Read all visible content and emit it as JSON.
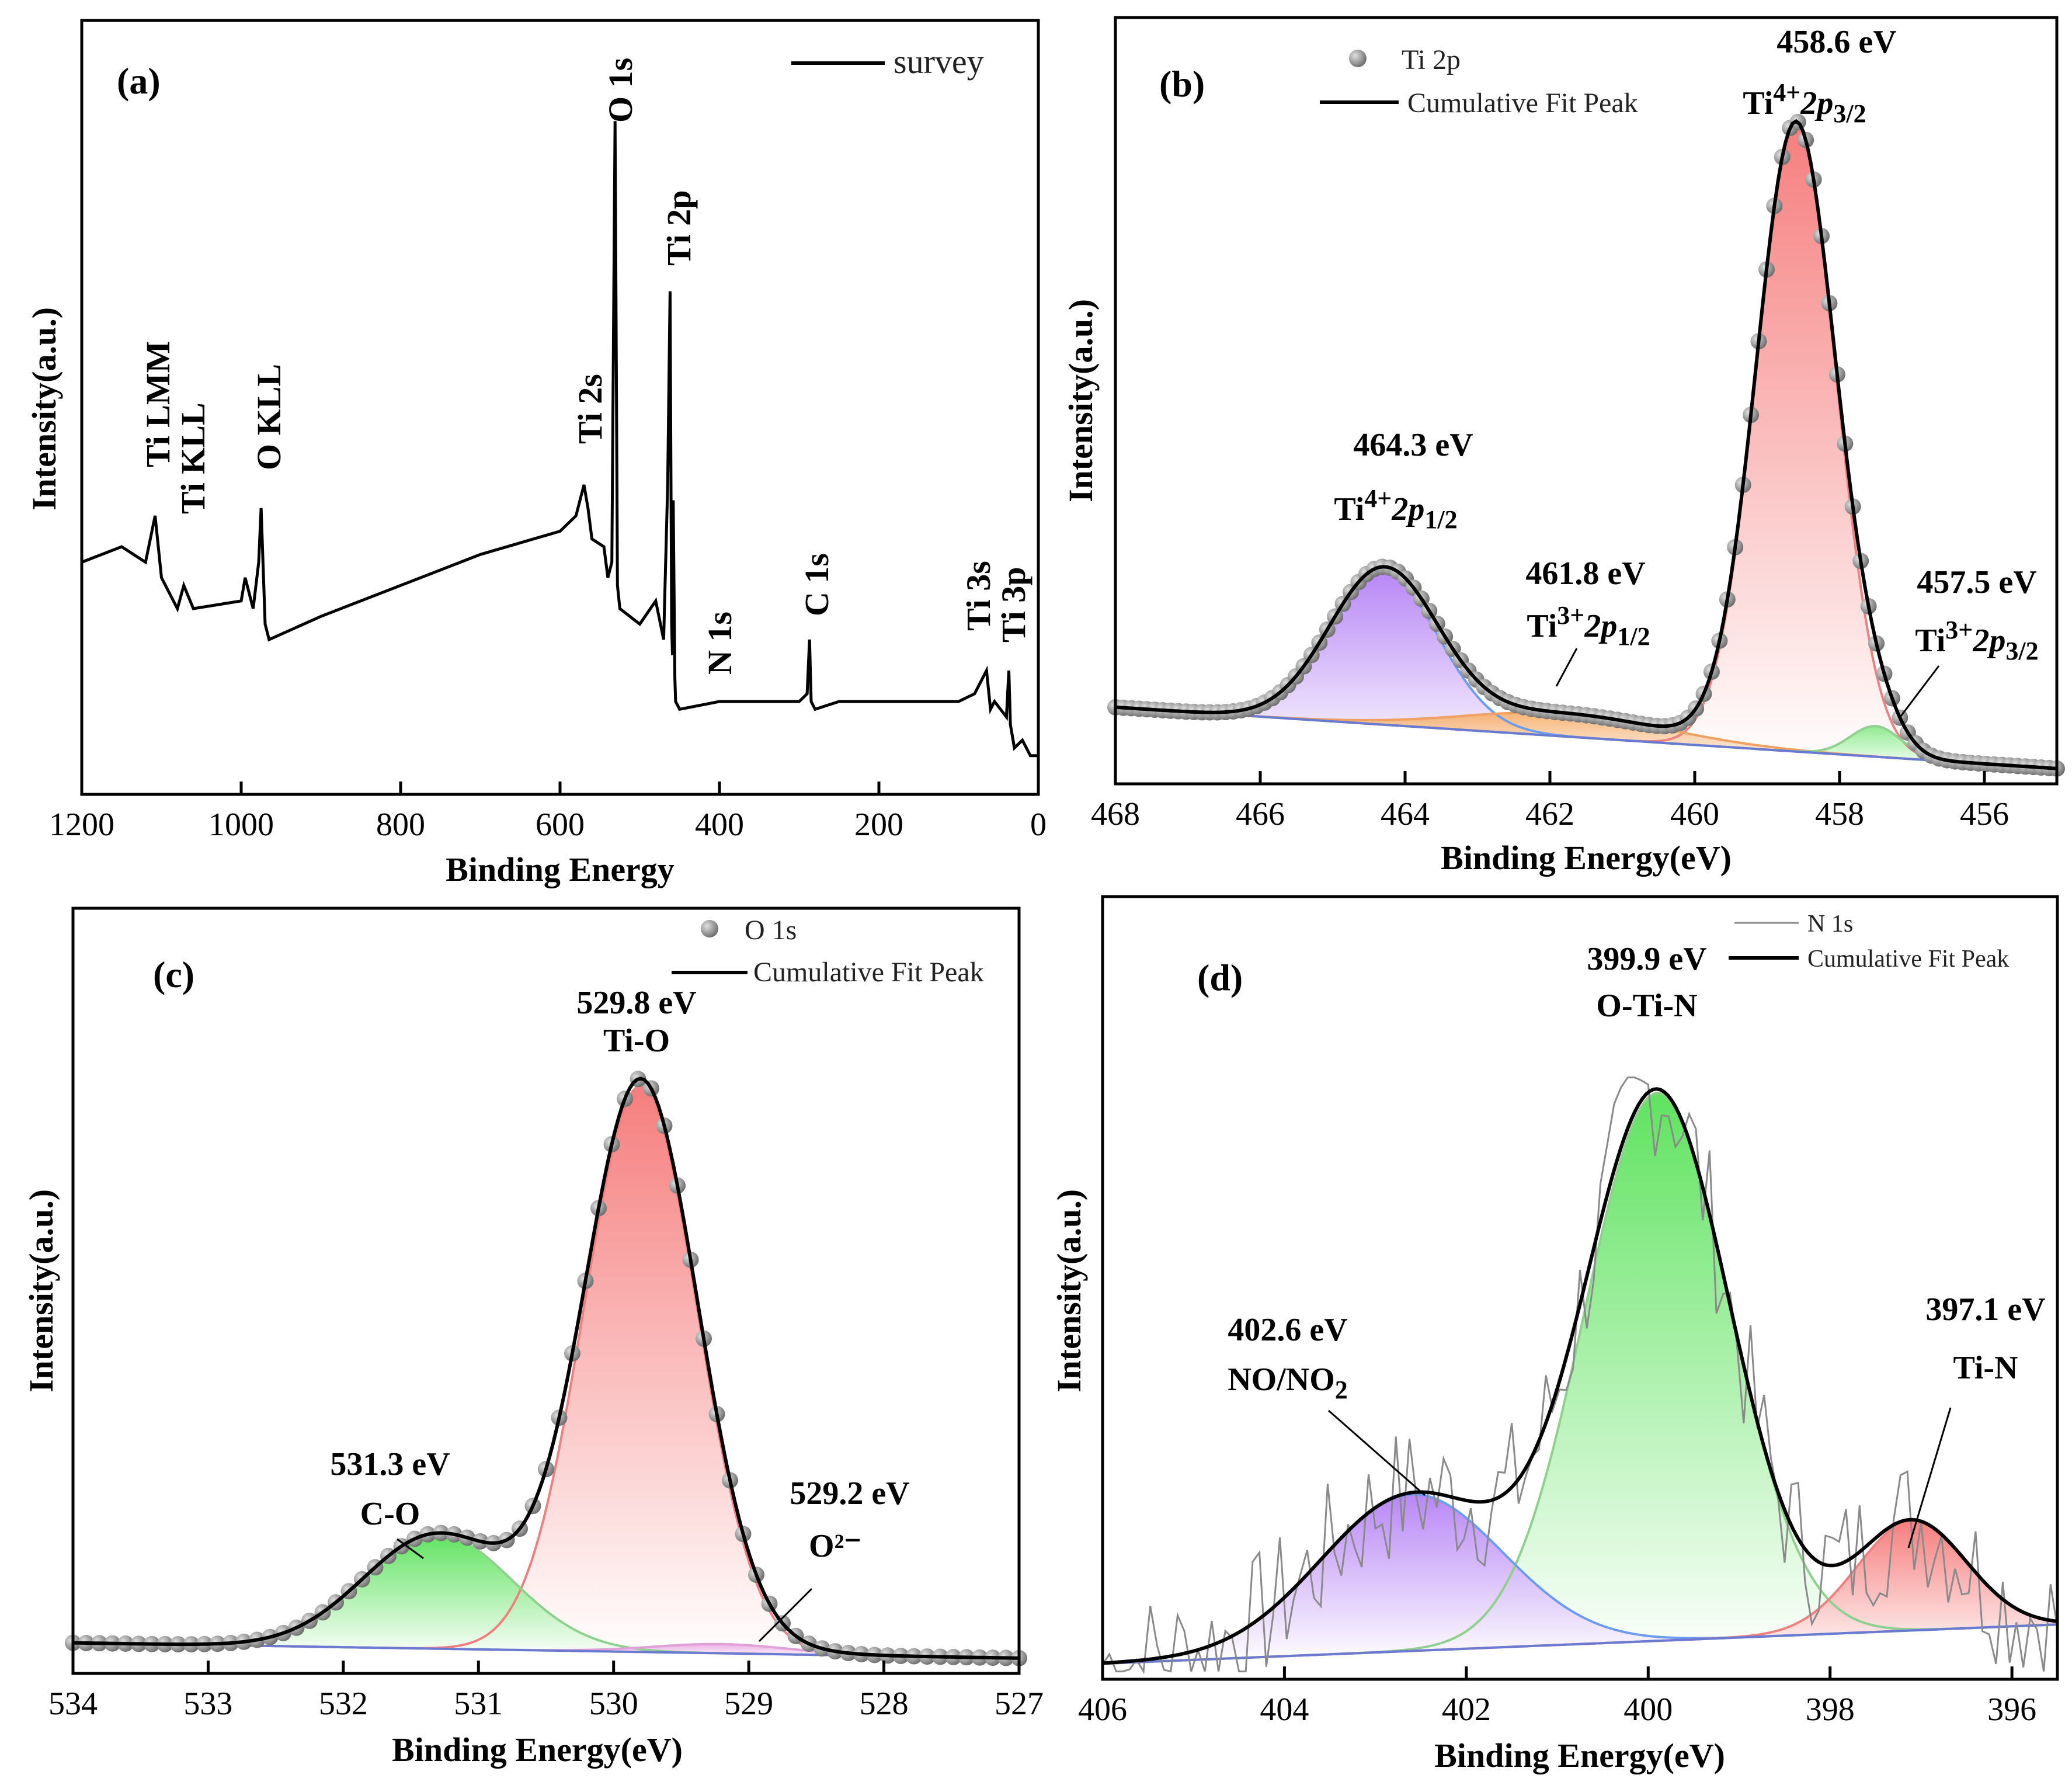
{
  "chart_data": [
    {
      "type": "line",
      "panel": "(a)",
      "legend": [
        "survey"
      ],
      "xlabel": "Binding Energy",
      "ylabel": "Intensity(a.u.)",
      "xlim": [
        1200,
        0
      ],
      "xticks": [
        1200,
        1000,
        800,
        600,
        400,
        200,
        0
      ],
      "series": [
        {
          "name": "survey",
          "x": [
            1200,
            1150,
            1120,
            1108,
            1100,
            1080,
            1072,
            1060,
            1000,
            995,
            985,
            978,
            975,
            970,
            965,
            900,
            800,
            700,
            600,
            580,
            570,
            565,
            560,
            545,
            540,
            535,
            531,
            528,
            525,
            500,
            480,
            470,
            465,
            462,
            460,
            459,
            458,
            456,
            455,
            450,
            400,
            350,
            300,
            290,
            287,
            285,
            280,
            250,
            200,
            150,
            100,
            80,
            65,
            60,
            55,
            40,
            37,
            35,
            30,
            20,
            10,
            0
          ],
          "y": [
            0.3,
            0.32,
            0.3,
            0.36,
            0.28,
            0.24,
            0.27,
            0.24,
            0.25,
            0.28,
            0.24,
            0.3,
            0.37,
            0.22,
            0.2,
            0.23,
            0.27,
            0.31,
            0.34,
            0.36,
            0.4,
            0.37,
            0.33,
            0.32,
            0.28,
            0.3,
            0.87,
            0.27,
            0.24,
            0.22,
            0.25,
            0.2,
            0.4,
            0.65,
            0.22,
            0.18,
            0.38,
            0.15,
            0.12,
            0.11,
            0.12,
            0.12,
            0.12,
            0.13,
            0.2,
            0.12,
            0.11,
            0.12,
            0.12,
            0.12,
            0.12,
            0.13,
            0.16,
            0.11,
            0.12,
            0.1,
            0.16,
            0.09,
            0.06,
            0.07,
            0.05,
            0.05
          ]
        }
      ],
      "annotations": [
        {
          "text": "Ti LMM",
          "x": 1108
        },
        {
          "text": "Ti KLL",
          "x": 1072
        },
        {
          "text": "O KLL",
          "x": 978
        },
        {
          "text": "Ti 2s",
          "x": 565
        },
        {
          "text": "O 1s",
          "x": 531
        },
        {
          "text": "Ti 2p",
          "x": 459
        },
        {
          "text": "N 1s",
          "x": 400
        },
        {
          "text": "C 1s",
          "x": 285
        },
        {
          "text": "Ti 3s",
          "x": 62
        },
        {
          "text": "Ti 3p",
          "x": 37
        }
      ]
    },
    {
      "type": "scatter",
      "panel": "(b)",
      "legend": [
        "Ti 2p",
        "Cumulative Fit Peak"
      ],
      "xlabel": "Binding Energy(eV)",
      "ylabel": "Intensity(a.u.)",
      "xlim": [
        468,
        455
      ],
      "xticks": [
        468,
        466,
        464,
        462,
        460,
        458,
        456
      ],
      "baseline": {
        "start": 0.1,
        "end": 0.02
      },
      "peaks": [
        {
          "name": "Ti4+ 2p3/2",
          "center": 458.6,
          "height": 0.82,
          "width": 0.55,
          "color": "#f26d6d"
        },
        {
          "name": "Ti4+ 2p1/2",
          "center": 464.3,
          "height": 0.2,
          "width": 0.75,
          "color": "#a26cf0"
        },
        {
          "name": "Ti3+ 2p1/2",
          "center": 461.8,
          "height": 0.03,
          "width": 1.4,
          "color": "#f2a35a"
        },
        {
          "name": "Ti3+ 2p3/2",
          "center": 457.5,
          "height": 0.04,
          "width": 0.35,
          "color": "#8fe08a"
        }
      ],
      "annotations": [
        {
          "value": "458.6 eV",
          "species": "Ti",
          "sup": "4+",
          "orbital": "2p",
          "sub": "3/2"
        },
        {
          "value": "464.3 eV",
          "species": "Ti",
          "sup": "4+",
          "orbital": "2p",
          "sub": "1/2"
        },
        {
          "value": "461.8 eV",
          "species": "Ti",
          "sup": "3+",
          "orbital": "2p",
          "sub": "1/2"
        },
        {
          "value": "457.5 eV",
          "species": "Ti",
          "sup": "3+",
          "orbital": "2p",
          "sub": "3/2"
        }
      ]
    },
    {
      "type": "scatter",
      "panel": "(c)",
      "legend": [
        "O 1s",
        "Cumulative Fit Peak"
      ],
      "xlabel": "Binding Energy(eV)",
      "ylabel": "Intensity(a.u.)",
      "xlim": [
        534,
        527
      ],
      "xticks": [
        534,
        533,
        532,
        531,
        530,
        529,
        528,
        527
      ],
      "baseline": {
        "start": 0.04,
        "end": 0.02
      },
      "peaks": [
        {
          "name": "Ti-O",
          "center": 529.8,
          "height": 0.74,
          "width": 0.42,
          "color": "#f26d6d"
        },
        {
          "name": "C-O",
          "center": 531.3,
          "height": 0.15,
          "width": 0.55,
          "color": "#5ee05e"
        },
        {
          "name": "O2-",
          "center": 529.2,
          "height": 0.012,
          "width": 0.5,
          "color": "#e8a0e0"
        }
      ],
      "annotations": [
        {
          "value": "529.8 eV",
          "label": "Ti-O"
        },
        {
          "value": "531.3 eV",
          "label": "C-O"
        },
        {
          "value": "529.2 eV",
          "label": "O²⁻"
        }
      ]
    },
    {
      "type": "line",
      "panel": "(d)",
      "legend": [
        "N 1s",
        "Cumulative Fit Peak"
      ],
      "xlabel": "Binding Energy(eV)",
      "ylabel": "Intensity(a.u.)",
      "xlim": [
        406,
        395.5
      ],
      "xticks": [
        406,
        404,
        402,
        400,
        398,
        396
      ],
      "baseline": {
        "start": 0.02,
        "end": 0.07
      },
      "peaks": [
        {
          "name": "O-Ti-N",
          "center": 399.9,
          "height": 0.7,
          "width": 0.8,
          "color": "#5ee05e"
        },
        {
          "name": "NO/NO2",
          "center": 402.6,
          "height": 0.2,
          "width": 1.0,
          "color": "#a26cf0"
        },
        {
          "name": "Ti-N",
          "center": 397.1,
          "height": 0.14,
          "width": 0.6,
          "color": "#f26d6d"
        }
      ],
      "annotations": [
        {
          "value": "399.9 eV",
          "label": "O-Ti-N"
        },
        {
          "value": "402.6 eV",
          "label": "NO/NO",
          "sub": "2"
        },
        {
          "value": "397.1 eV",
          "label": "Ti-N"
        }
      ]
    }
  ]
}
